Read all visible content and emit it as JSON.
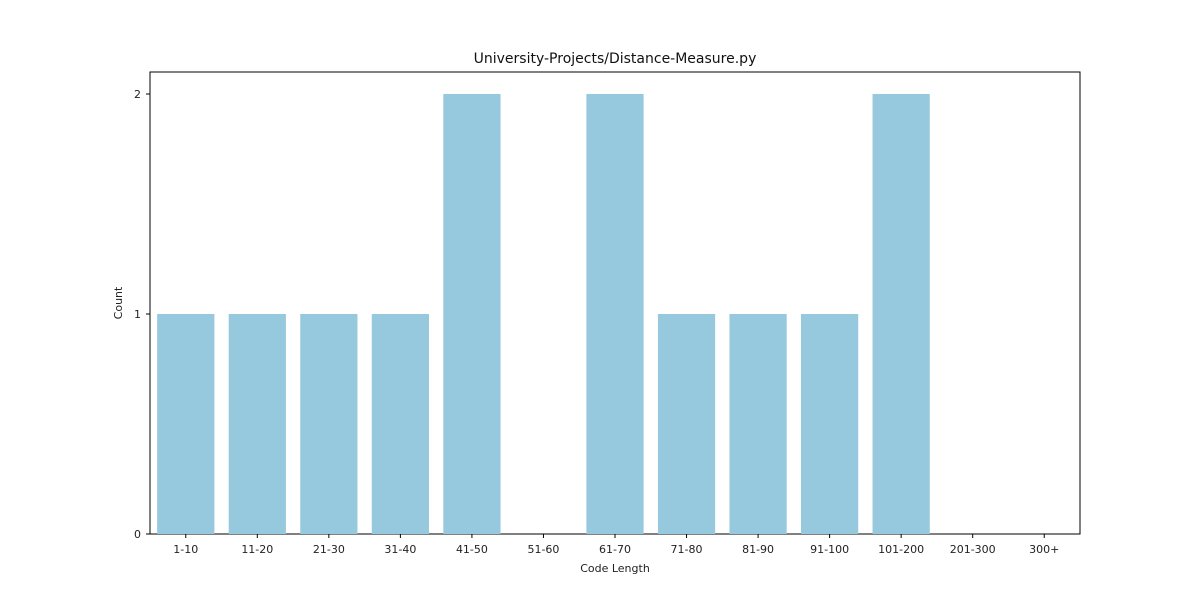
{
  "colors": {
    "bar": "#96c9de",
    "axis": "#000000",
    "background": "#ffffff"
  },
  "chart_data": {
    "type": "bar",
    "title": "University-Projects/Distance-Measure.py",
    "xlabel": "Code Length",
    "ylabel": "Count",
    "categories": [
      "1-10",
      "11-20",
      "21-30",
      "31-40",
      "41-50",
      "51-60",
      "61-70",
      "71-80",
      "81-90",
      "91-100",
      "101-200",
      "201-300",
      "300+"
    ],
    "values": [
      1,
      1,
      1,
      1,
      2,
      0,
      2,
      1,
      1,
      1,
      2,
      0,
      0
    ],
    "yticks": [
      "0",
      "1",
      "2"
    ],
    "ylim": [
      0,
      2.1
    ],
    "grid": false,
    "legend": "none"
  }
}
